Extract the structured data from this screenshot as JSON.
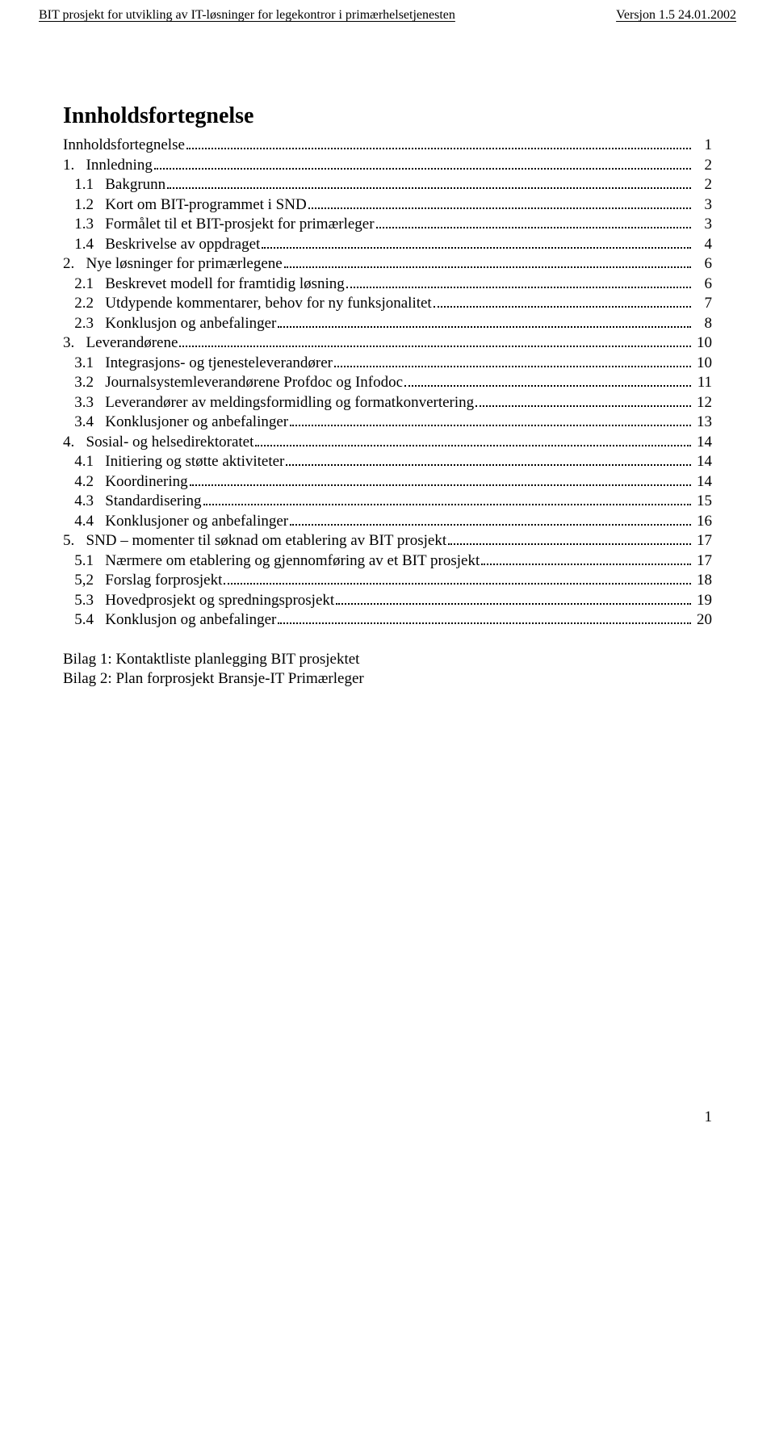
{
  "header": {
    "left": "BIT prosjekt for utvikling av IT-løsninger for legekontror i primærhelsetjenesten",
    "right": "Versjon 1.5   24.01.2002"
  },
  "title": "Innholdsfortegnelse",
  "toc": [
    {
      "prefix": "",
      "num": "",
      "label": "Innholdsfortegnelse",
      "page": "1"
    },
    {
      "prefix": "",
      "num": "1.   ",
      "label": "Innledning",
      "page": "2"
    },
    {
      "prefix": "   ",
      "num": "1.1   ",
      "label": "Bakgrunn",
      "page": "2"
    },
    {
      "prefix": "   ",
      "num": "1.2   ",
      "label": "Kort om BIT-programmet i SND",
      "page": "3"
    },
    {
      "prefix": "   ",
      "num": "1.3   ",
      "label": "Formålet til et BIT-prosjekt for primærleger",
      "page": "3"
    },
    {
      "prefix": "   ",
      "num": "1.4   ",
      "label": "Beskrivelse av oppdraget",
      "page": "4"
    },
    {
      "prefix": "",
      "num": "2.   ",
      "label": "Nye løsninger for primærlegene",
      "page": "6"
    },
    {
      "prefix": "   ",
      "num": "2.1   ",
      "label": "Beskrevet modell for framtidig løsning",
      "page": "6"
    },
    {
      "prefix": "   ",
      "num": "2.2   ",
      "label": "Utdypende kommentarer, behov for ny funksjonalitet",
      "page": "7"
    },
    {
      "prefix": "   ",
      "num": "2.3   ",
      "label": "Konklusjon og anbefalinger",
      "page": "8"
    },
    {
      "prefix": "",
      "num": "3.   ",
      "label": "Leverandørene",
      "page": "10"
    },
    {
      "prefix": "   ",
      "num": "3.1   ",
      "label": "Integrasjons- og tjenesteleverandører",
      "page": "10"
    },
    {
      "prefix": "   ",
      "num": "3.2   ",
      "label": "Journalsystemleverandørene Profdoc og Infodoc",
      "page": "11"
    },
    {
      "prefix": "   ",
      "num": "3.3   ",
      "label": "Leverandører av meldingsformidling  og formatkonvertering",
      "page": "12"
    },
    {
      "prefix": "   ",
      "num": "3.4   ",
      "label": "Konklusjoner og anbefalinger",
      "page": "13"
    },
    {
      "prefix": "",
      "num": "4.   ",
      "label": "Sosial- og helsedirektoratet",
      "page": "14"
    },
    {
      "prefix": "   ",
      "num": "4.1   ",
      "label": "Initiering og støtte aktiviteter",
      "page": "14"
    },
    {
      "prefix": "   ",
      "num": "4.2   ",
      "label": "Koordinering",
      "page": "14"
    },
    {
      "prefix": "   ",
      "num": "4.3   ",
      "label": "Standardisering",
      "page": "15"
    },
    {
      "prefix": "   ",
      "num": "4.4   ",
      "label": "Konklusjoner og anbefalinger",
      "page": "16"
    },
    {
      "prefix": "",
      "num": "5.   ",
      "label": "SND – momenter til søknad om etablering av BIT prosjekt",
      "page": "17"
    },
    {
      "prefix": "   ",
      "num": "5.1   ",
      "label": "Nærmere om etablering og gjennomføring av et BIT prosjekt",
      "page": "17"
    },
    {
      "prefix": "   ",
      "num": "5,2   ",
      "label": "Forslag forprosjekt",
      "page": "18"
    },
    {
      "prefix": "   ",
      "num": "5.3   ",
      "label": "Hovedprosjekt og spredningsprosjekt",
      "page": "19"
    },
    {
      "prefix": "   ",
      "num": "5.4   ",
      "label": "Konklusjon og anbefalinger",
      "page": "20"
    }
  ],
  "appendix": {
    "line1": "Bilag 1: Kontaktliste planlegging BIT prosjektet",
    "line2": "Bilag 2: Plan forprosjekt Bransje-IT Primærleger"
  },
  "pageNumber": "1"
}
